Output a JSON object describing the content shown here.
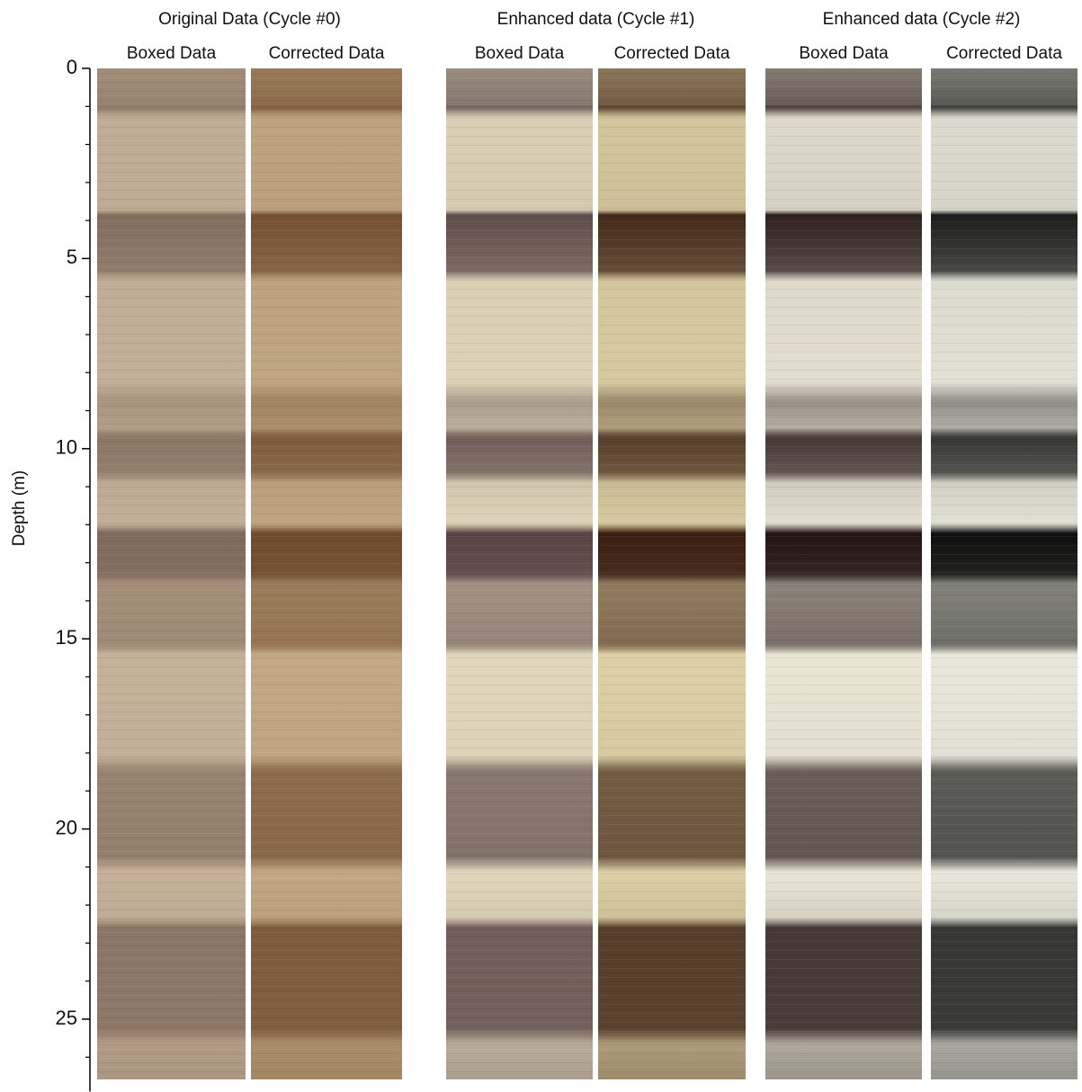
{
  "chart_data": {
    "type": "core-image",
    "y_label": "Depth (m)",
    "ylim": [
      0,
      26.9
    ],
    "yticks": [
      0,
      5,
      10,
      15,
      20,
      25
    ],
    "minor_yticks": [
      1,
      2,
      3,
      4,
      6,
      7,
      8,
      9,
      11,
      12,
      13,
      14,
      16,
      17,
      18,
      19,
      21,
      22,
      23,
      24,
      26
    ],
    "groups": [
      {
        "title": "Original Data (Cycle #0)",
        "panels": [
          "Boxed Data",
          "Corrected Data"
        ]
      },
      {
        "title": "Enhanced data (Cycle #1)",
        "panels": [
          "Boxed Data",
          "Corrected Data"
        ]
      },
      {
        "title": "Enhanced data (Cycle #2)",
        "panels": [
          "Boxed Data",
          "Corrected Data"
        ]
      }
    ]
  }
}
